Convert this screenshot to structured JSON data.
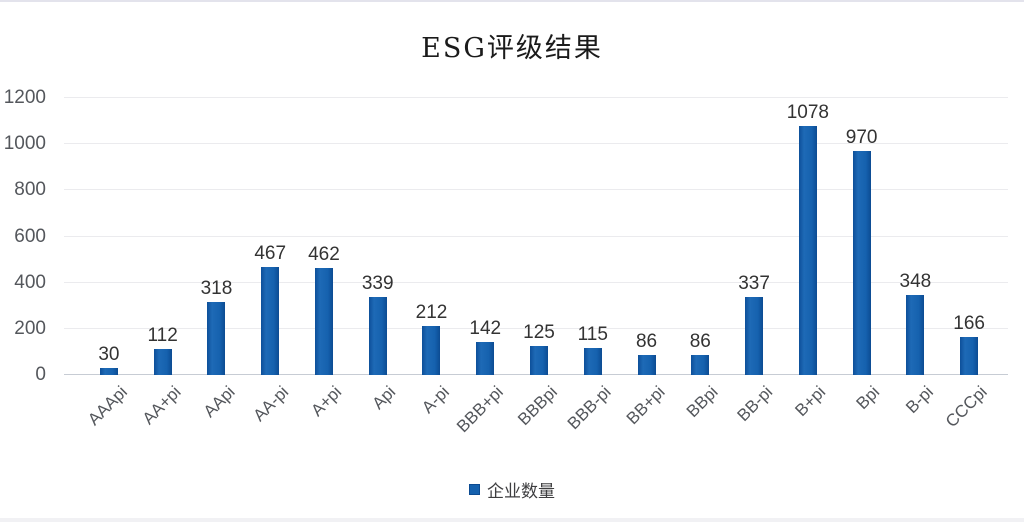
{
  "chart_data": {
    "type": "bar",
    "title": "ESG评级结果",
    "series_name": "企业数量",
    "categories": [
      "AAApi",
      "AA+pi",
      "AApi",
      "AA-pi",
      "A+pi",
      "Api",
      "A-pi",
      "BBB+pi",
      "BBBpi",
      "BBB-pi",
      "BB+pi",
      "BBpi",
      "BB-pi",
      "B+pi",
      "Bpi",
      "B-pi",
      "CCCpi"
    ],
    "values": [
      30,
      112,
      318,
      467,
      462,
      339,
      212,
      142,
      125,
      115,
      86,
      86,
      337,
      1078,
      970,
      348,
      166
    ],
    "xlabel": "",
    "ylabel": "",
    "ylim": [
      0,
      1200
    ],
    "yticks": [
      0,
      200,
      400,
      600,
      800,
      1000,
      1200
    ],
    "grid": true,
    "legend_position": "bottom",
    "bar_color": "#1561ae",
    "baseline_color": "#c7ccd4",
    "grid_color": "#ebebee"
  }
}
